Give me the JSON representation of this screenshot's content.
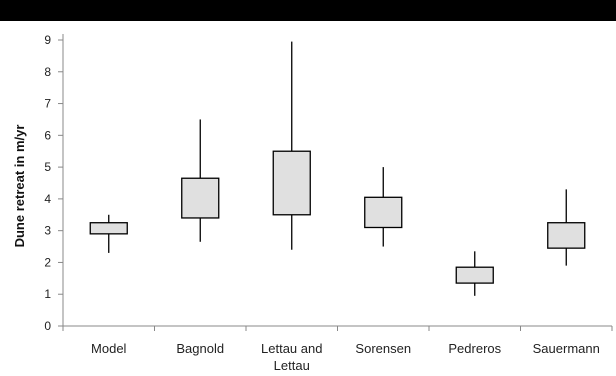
{
  "chart_data": {
    "type": "boxplot",
    "title": "",
    "xlabel": "",
    "ylabel": "Dune retreat in m/yr",
    "ylim": [
      0,
      9
    ],
    "yticks": [
      0,
      1,
      2,
      3,
      4,
      5,
      6,
      7,
      8,
      9
    ],
    "grid": false,
    "legend": "none",
    "colors": {
      "box_fill": "#e0e0e0",
      "stroke": "#000000",
      "axis": "#888888"
    },
    "categories": [
      [
        "Model"
      ],
      [
        "Bagnold"
      ],
      [
        "Lettau and",
        "Lettau"
      ],
      [
        "Sorensen"
      ],
      [
        "Pedreros"
      ],
      [
        "Sauermann"
      ]
    ],
    "boxes": [
      {
        "min": 2.3,
        "q1": 2.9,
        "q3": 3.25,
        "max": 3.5
      },
      {
        "min": 2.65,
        "q1": 3.4,
        "q3": 4.65,
        "max": 6.5
      },
      {
        "min": 2.4,
        "q1": 3.5,
        "q3": 5.5,
        "max": 8.95
      },
      {
        "min": 2.5,
        "q1": 3.1,
        "q3": 4.05,
        "max": 5.0
      },
      {
        "min": 0.95,
        "q1": 1.35,
        "q3": 1.85,
        "max": 2.35
      },
      {
        "min": 1.9,
        "q1": 2.45,
        "q3": 3.25,
        "max": 4.3
      }
    ]
  }
}
